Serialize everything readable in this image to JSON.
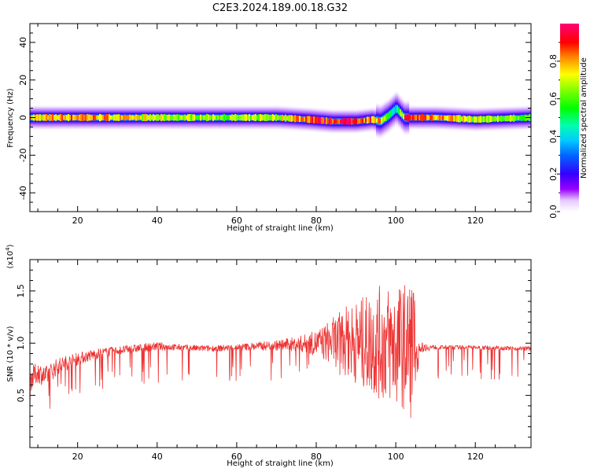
{
  "title": "C2E3.2024.189.00.18.G32",
  "chart_data": [
    {
      "type": "heatmap",
      "xlabel": "Height of straight line (km)",
      "ylabel": "Frequency (Hz)",
      "xlim": [
        8,
        134
      ],
      "ylim": [
        -50,
        50
      ],
      "xticks": [
        "20",
        "40",
        "60",
        "80",
        "100",
        "120"
      ],
      "yticks": [
        "40",
        "20",
        "0",
        "-20",
        "-40"
      ],
      "colorbar": {
        "label": "Normalized spectral amplitude",
        "ticks": [
          "0.0",
          "0.2",
          "0.4",
          "0.6",
          "0.8"
        ],
        "range": [
          0,
          1
        ]
      },
      "ridge": {
        "x": [
          8,
          20,
          40,
          60,
          70,
          78,
          84,
          90,
          94,
          96,
          98,
          100,
          102,
          104,
          110,
          120,
          134
        ],
        "frequency_center": [
          0,
          0,
          0,
          0,
          0,
          -1,
          -2,
          -2,
          -1,
          -2,
          1,
          5,
          0,
          0,
          0,
          -1,
          0
        ],
        "peak_amplitude": [
          0.75,
          0.85,
          0.7,
          0.65,
          0.7,
          0.9,
          0.95,
          0.95,
          0.85,
          0.8,
          0.5,
          0.4,
          0.9,
          0.9,
          0.85,
          0.7,
          0.6
        ]
      }
    },
    {
      "type": "line",
      "xlabel": "Height of straight line (km)",
      "ylabel": "SNR (10 * v/v)",
      "scale_label_base": "(x10",
      "scale_label_exp": "4",
      "scale_label_end": ")",
      "xlim": [
        8,
        134
      ],
      "ylim": [
        0,
        1.8
      ],
      "xticks": [
        "20",
        "40",
        "60",
        "80",
        "100",
        "120"
      ],
      "yticks": [
        "0.5",
        "1.0",
        "1.5"
      ],
      "series": [
        {
          "color": "#ee3333",
          "x": [
            8,
            10,
            12,
            15,
            20,
            25,
            30,
            35,
            40,
            45,
            50,
            55,
            60,
            65,
            70,
            75,
            80,
            85,
            88,
            92,
            96,
            100,
            102,
            104,
            106,
            110,
            120,
            130,
            134
          ],
          "values": [
            0.65,
            0.72,
            0.68,
            0.78,
            0.85,
            0.9,
            0.93,
            0.95,
            0.97,
            0.96,
            0.95,
            0.95,
            0.96,
            0.97,
            0.98,
            0.99,
            1.0,
            1.02,
            1.02,
            1.0,
            1.0,
            0.98,
            0.97,
            0.97,
            0.96,
            0.96,
            0.96,
            0.95,
            0.95
          ],
          "envelope_amplitude": [
            0.12,
            0.1,
            0.1,
            0.08,
            0.06,
            0.05,
            0.04,
            0.04,
            0.04,
            0.03,
            0.03,
            0.03,
            0.03,
            0.04,
            0.05,
            0.07,
            0.12,
            0.25,
            0.35,
            0.45,
            0.55,
            0.6,
            0.6,
            0.7,
            0.05,
            0.02,
            0.02,
            0.02,
            0.02
          ]
        }
      ]
    }
  ]
}
